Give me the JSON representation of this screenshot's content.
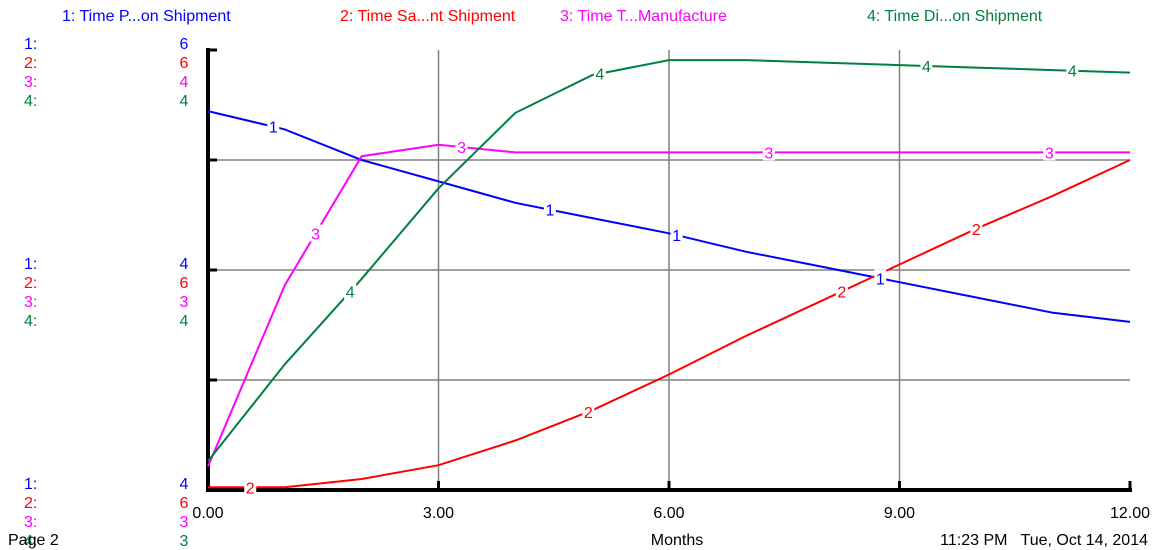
{
  "chart_data": {
    "type": "line",
    "xlabel": "Months",
    "x_ticks": [
      "0.00",
      "3.00",
      "6.00",
      "9.00",
      "12.00"
    ],
    "xlim": [
      0,
      12
    ],
    "series": [
      {
        "name": "1: Time P...on Shipment",
        "marker": "1",
        "color": "#0000ff",
        "ylim": [
          3.34,
          4.78
        ],
        "x": [
          0,
          1,
          2,
          3,
          4,
          5,
          6,
          7,
          8,
          9,
          10,
          11,
          12
        ],
        "y": [
          4.58,
          4.52,
          4.42,
          4.35,
          4.28,
          4.23,
          4.18,
          4.12,
          4.07,
          4.02,
          3.97,
          3.92,
          3.89
        ]
      },
      {
        "name": "2: Time Sa...nt Shipment",
        "marker": "2",
        "color": "#ff0000",
        "ylim": [
          5.97,
          6.13
        ],
        "x": [
          0,
          1,
          2,
          3,
          4,
          5,
          6,
          7,
          8,
          9,
          10,
          11,
          12
        ],
        "y": [
          5.971,
          5.971,
          5.974,
          5.979,
          5.988,
          5.999,
          6.012,
          6.026,
          6.039,
          6.052,
          6.065,
          6.077,
          6.09
        ]
      },
      {
        "name": "3: Time T...Manufacture",
        "marker": "3",
        "color": "#ff00ff",
        "ylim": [
          3.71,
          4.29
        ],
        "x": [
          0,
          1,
          2,
          3,
          4,
          5,
          6,
          7,
          8,
          9,
          10,
          11,
          12
        ],
        "y": [
          3.741,
          3.98,
          4.15,
          4.165,
          4.155,
          4.155,
          4.155,
          4.155,
          4.155,
          4.155,
          4.155,
          4.155,
          4.155
        ]
      },
      {
        "name": "4: Time Di...on Shipment",
        "marker": "4",
        "color": "#008040",
        "ylim": [
          3.75,
          4.1
        ],
        "x": [
          0,
          1,
          2,
          3,
          4,
          5,
          6,
          7,
          8,
          9,
          10,
          11,
          12
        ],
        "y": [
          3.773,
          3.85,
          3.918,
          3.99,
          4.05,
          4.08,
          4.092,
          4.092,
          4.09,
          4.088,
          4.086,
          4.084,
          4.082
        ]
      }
    ],
    "scale_labels": [
      {
        "values": [
          "6",
          "6",
          "4",
          "4"
        ]
      },
      {
        "values": [
          "4",
          "6",
          "3",
          "4"
        ]
      },
      {
        "values": [
          "4",
          "6",
          "3",
          "3"
        ]
      }
    ],
    "grid": true
  },
  "footer": {
    "page": "Page 2",
    "timestamp": "11:23 PM   Tue, Oct 14, 2014"
  }
}
